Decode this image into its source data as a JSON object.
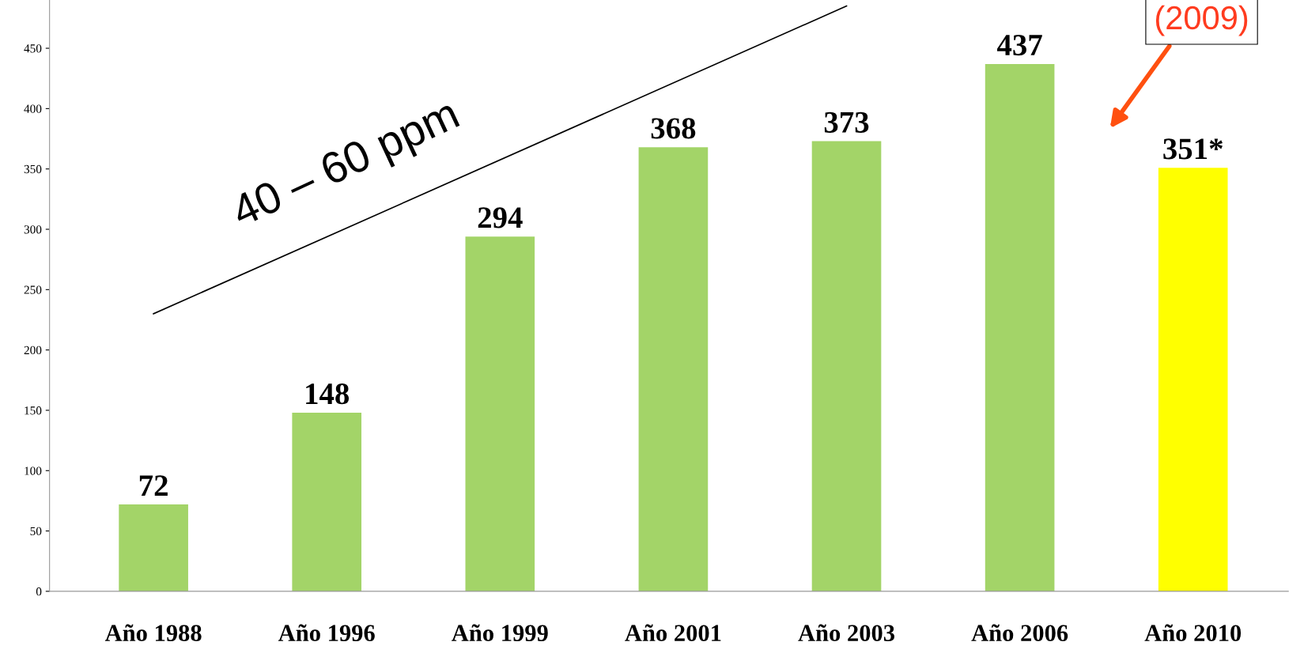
{
  "chart_data": {
    "type": "bar",
    "categories": [
      "Año 1988",
      "Año 1996",
      "Año 1999",
      "Año 2001",
      "Año 2003",
      "Año 2006",
      "Año 2010"
    ],
    "series": [
      {
        "values": [
          72,
          148,
          294,
          368,
          373,
          437,
          351
        ],
        "colors": [
          "#a3d468",
          "#a3d468",
          "#a3d468",
          "#a3d468",
          "#a3d468",
          "#a3d468",
          "#ffff00"
        ],
        "value_labels": [
          "72",
          "148",
          "294",
          "368",
          "373",
          "437",
          "351*"
        ]
      },
      {
        "type": "line",
        "x": [
          "Año 1988",
          "Año 2003"
        ],
        "values": [
          230,
          485
        ],
        "color": "#000000"
      }
    ],
    "ylim": [
      0,
      490
    ],
    "yticks": [
      0,
      50,
      100,
      150,
      200,
      250,
      300,
      350,
      400,
      450
    ],
    "grid": false,
    "legend": false,
    "annotations": [
      "40 – 60 ppm",
      "(2009)"
    ]
  }
}
